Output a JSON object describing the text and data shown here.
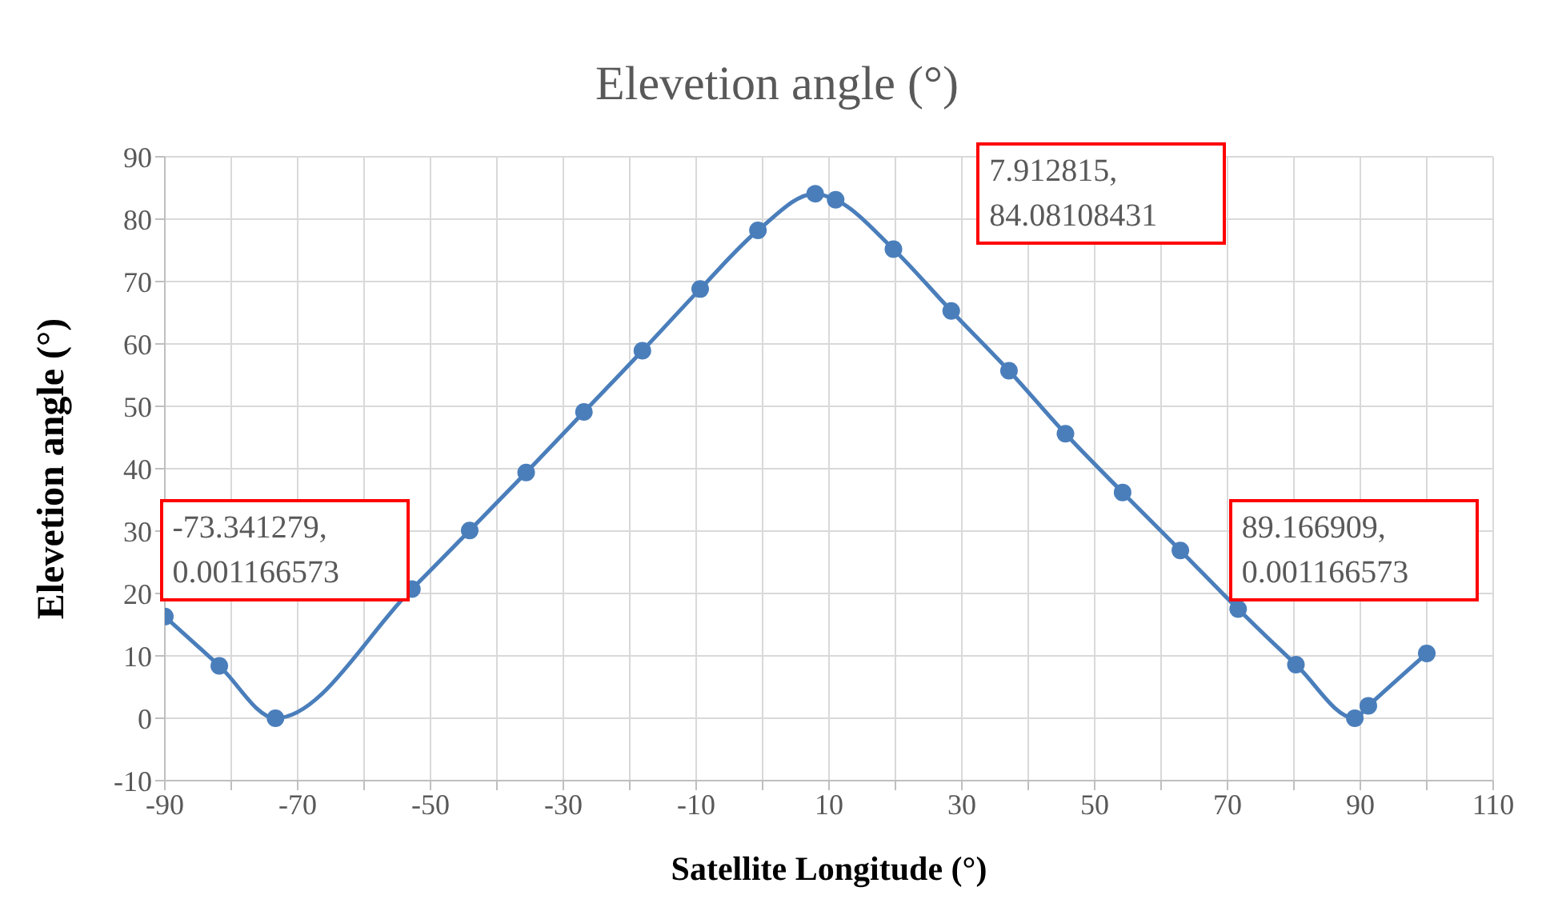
{
  "chart_data": {
    "type": "line",
    "title": "Elevetion angle (°)",
    "xlabel": "Satellite Longitude (°)",
    "ylabel": "Elevetion angle (°)",
    "x": [
      -90,
      -81.8,
      -73.341279,
      -52.8,
      -44.1,
      -35.6,
      -26.9,
      -18.1,
      -9.4,
      -0.7,
      7.912815,
      11,
      19.7,
      28.4,
      37.1,
      45.6,
      54.2,
      62.9,
      71.6,
      80.3,
      89.166909,
      91.2,
      100
    ],
    "series": [
      {
        "color": "#4a7ebb",
        "values": [
          16.3,
          8.4,
          0.001166573,
          20.7,
          30.1,
          39.4,
          49.1,
          58.9,
          68.8,
          78.2,
          84.08108431,
          83.1,
          75.2,
          65.3,
          55.7,
          45.6,
          36.2,
          26.9,
          17.5,
          8.6,
          0.001166573,
          2,
          10.4
        ]
      }
    ],
    "xlim": [
      -90,
      110
    ],
    "xticks": [
      -90,
      {
        "value": -80,
        "label": null
      },
      -70,
      {
        "value": -60,
        "label": null
      },
      -50,
      {
        "value": -40,
        "label": null
      },
      -30,
      {
        "value": -20,
        "label": null
      },
      -10,
      {
        "value": 0,
        "label": null
      },
      10,
      {
        "value": 20,
        "label": null
      },
      30,
      {
        "value": 40,
        "label": null
      },
      50,
      {
        "value": 60,
        "label": null
      },
      70,
      {
        "value": 80,
        "label": null
      },
      90,
      {
        "value": 100,
        "label": null
      },
      110
    ],
    "ylim": [
      -10,
      90
    ],
    "yticks": [
      -10,
      0,
      10,
      20,
      30,
      40,
      50,
      60,
      70,
      80,
      90
    ],
    "grid": true,
    "marker": "circle",
    "line_style": "solid",
    "legend": false,
    "annotations": [
      "-73.341279, 0.001166573",
      "7.912815, 84.08108431",
      "89.166909, 0.001166573"
    ]
  }
}
